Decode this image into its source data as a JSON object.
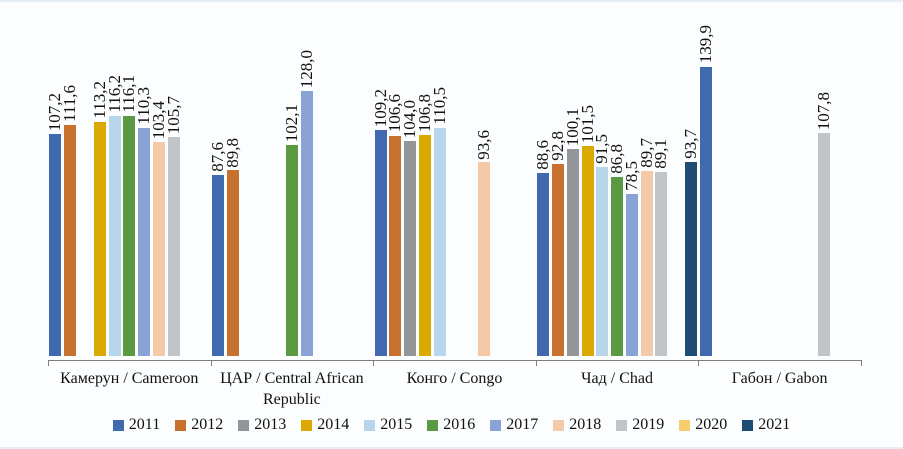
{
  "chart_data": {
    "type": "bar",
    "title": "",
    "categories": [
      "Камерун / Cameroon",
      "ЦАР / Central African Republic",
      "Конго / Congo",
      "Чад / Chad",
      "Габон / Gabon"
    ],
    "series": [
      {
        "name": "2011",
        "color": "#4169AE",
        "values": [
          107.2,
          87.6,
          109.2,
          88.6,
          139.9
        ]
      },
      {
        "name": "2012",
        "color": "#C8702E",
        "values": [
          111.6,
          89.8,
          106.6,
          92.8,
          null
        ]
      },
      {
        "name": "2013",
        "color": "#939598",
        "values": [
          null,
          null,
          104.0,
          100.1,
          null
        ]
      },
      {
        "name": "2014",
        "color": "#DCA902",
        "values": [
          113.2,
          null,
          106.8,
          101.5,
          null
        ]
      },
      {
        "name": "2015",
        "color": "#B9D5EC",
        "values": [
          116.2,
          null,
          110.5,
          91.5,
          null
        ]
      },
      {
        "name": "2016",
        "color": "#5B9A43",
        "values": [
          116.1,
          102.1,
          null,
          86.8,
          null
        ]
      },
      {
        "name": "2017",
        "color": "#8AA3D6",
        "values": [
          110.3,
          128.0,
          null,
          78.5,
          null
        ]
      },
      {
        "name": "2018",
        "color": "#F3C9A7",
        "values": [
          103.4,
          null,
          93.6,
          89.7,
          null
        ]
      },
      {
        "name": "2019",
        "color": "#C2C5C7",
        "values": [
          105.7,
          null,
          null,
          89.1,
          107.8
        ]
      },
      {
        "name": "2020",
        "color": "#F7CC6E",
        "values": [
          null,
          null,
          null,
          null,
          null
        ]
      },
      {
        "name": "2021",
        "color": "#1F4C72",
        "values": [
          null,
          null,
          null,
          93.7,
          null
        ]
      }
    ],
    "value_labels_rotated": true,
    "decimal_separator": ",",
    "ylim": [
      0,
      145
    ],
    "grid": false,
    "legend_position": "bottom",
    "axis_color": "#7F7F7F"
  }
}
